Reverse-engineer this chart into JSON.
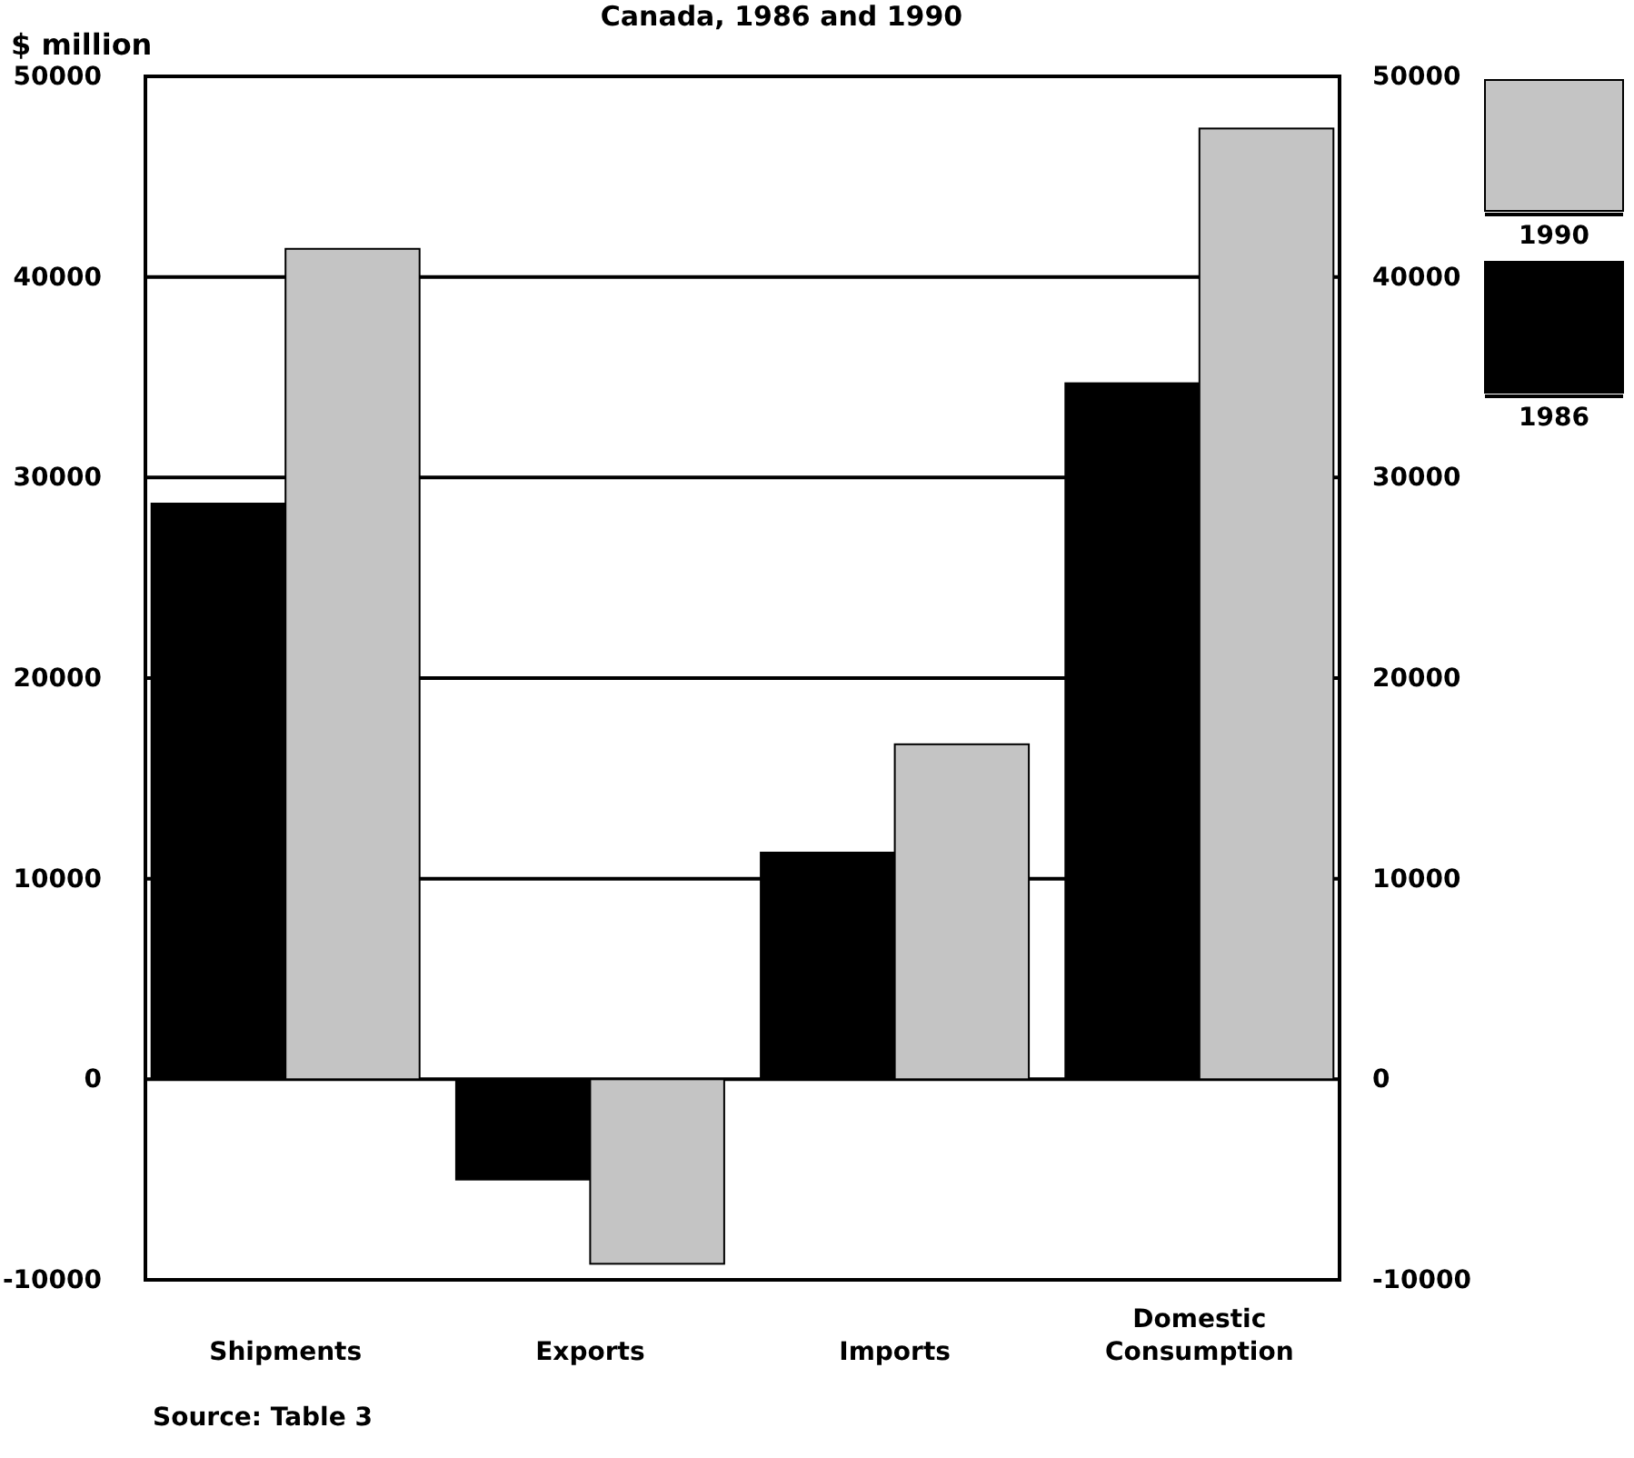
{
  "chart_data": {
    "type": "bar",
    "title": "Canada, 1986 and 1990",
    "ylabel": "$ million",
    "categories": [
      "Shipments",
      "Exports",
      "Imports",
      "Domestic Consumption"
    ],
    "series": [
      {
        "name": "1986",
        "color": "#000000",
        "values": [
          28700,
          -5000,
          11300,
          34700
        ]
      },
      {
        "name": "1990",
        "color": "#c4c4c4",
        "values": [
          41400,
          -9200,
          16700,
          47400
        ]
      }
    ],
    "ylim": [
      -10000,
      50000
    ],
    "yticks": [
      -10000,
      0,
      10000,
      20000,
      30000,
      40000,
      50000
    ],
    "y2lim": [
      -10000,
      50000
    ],
    "y2ticks": [
      -10000,
      0,
      10000,
      20000,
      30000,
      40000,
      50000
    ],
    "grid": "y",
    "legend": "right",
    "annotations": [
      "Source: Table 3"
    ]
  }
}
